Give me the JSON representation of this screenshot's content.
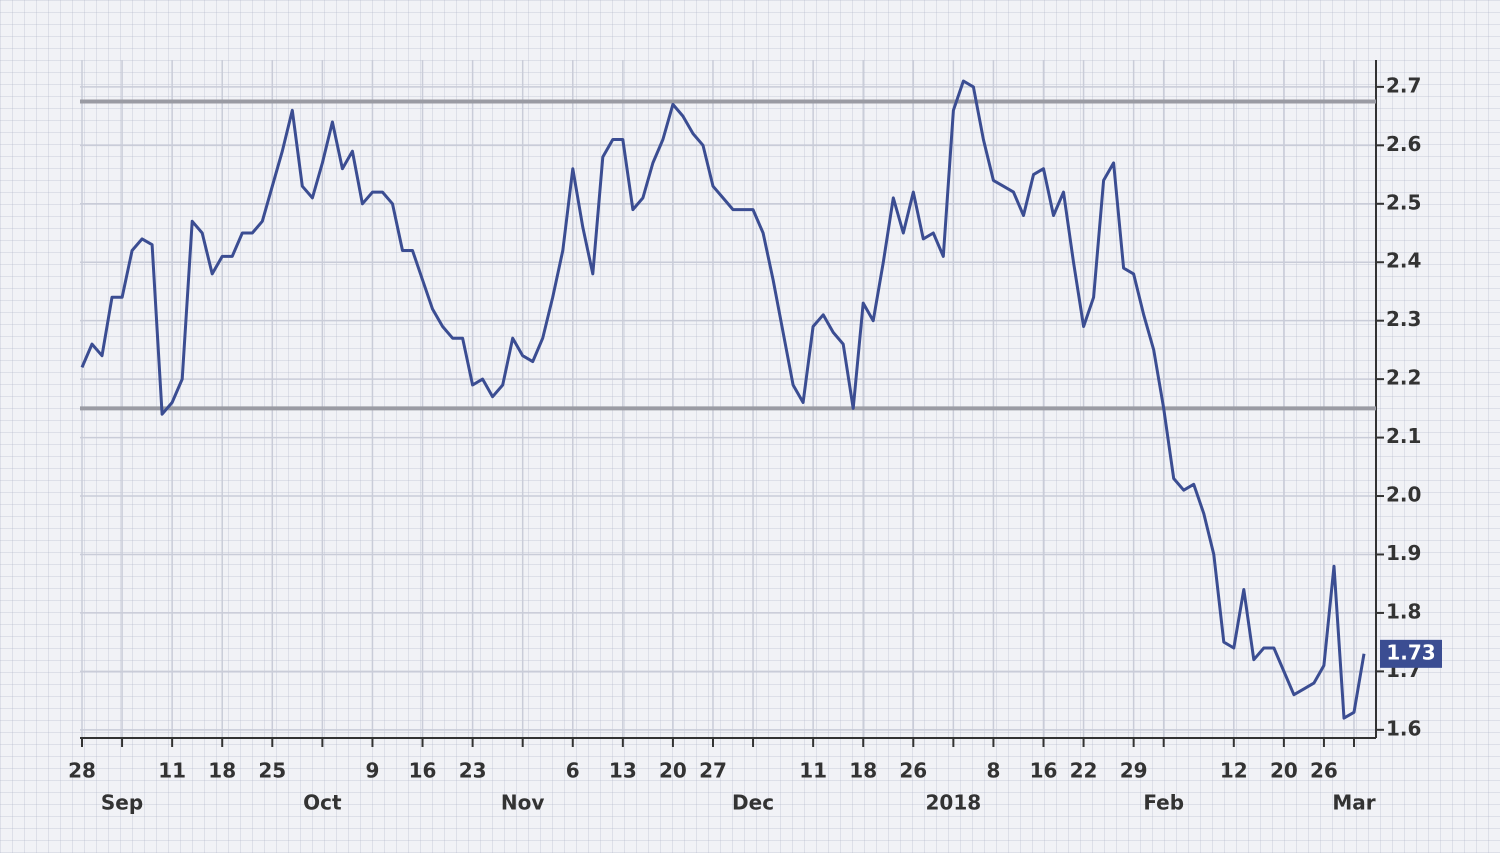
{
  "chart_data": {
    "type": "line",
    "series": [
      {
        "color": "#3b4d92",
        "values": [
          2.22,
          2.26,
          2.24,
          2.34,
          2.34,
          2.42,
          2.44,
          2.43,
          2.14,
          2.16,
          2.2,
          2.47,
          2.45,
          2.38,
          2.41,
          2.41,
          2.45,
          2.45,
          2.47,
          2.53,
          2.59,
          2.66,
          2.53,
          2.51,
          2.57,
          2.64,
          2.56,
          2.59,
          2.5,
          2.52,
          2.52,
          2.5,
          2.42,
          2.42,
          2.37,
          2.32,
          2.29,
          2.27,
          2.27,
          2.19,
          2.2,
          2.17,
          2.19,
          2.27,
          2.24,
          2.23,
          2.27,
          2.34,
          2.42,
          2.56,
          2.46,
          2.38,
          2.58,
          2.61,
          2.61,
          2.49,
          2.51,
          2.57,
          2.61,
          2.67,
          2.65,
          2.62,
          2.6,
          2.53,
          2.51,
          2.49,
          2.49,
          2.49,
          2.45,
          2.37,
          2.28,
          2.19,
          2.16,
          2.29,
          2.31,
          2.28,
          2.26,
          2.15,
          2.33,
          2.3,
          2.4,
          2.51,
          2.45,
          2.52,
          2.44,
          2.45,
          2.41,
          2.66,
          2.71,
          2.7,
          2.61,
          2.54,
          2.53,
          2.52,
          2.48,
          2.55,
          2.56,
          2.48,
          2.52,
          2.4,
          2.29,
          2.34,
          2.54,
          2.57,
          2.39,
          2.38,
          2.31,
          2.25,
          2.15,
          2.03,
          2.01,
          2.02,
          1.97,
          1.9,
          1.75,
          1.74,
          1.84,
          1.72,
          1.74,
          1.74,
          1.7,
          1.66,
          1.67,
          1.68,
          1.71,
          1.88,
          1.62,
          1.63,
          1.73
        ]
      }
    ],
    "last_value_label": "1.73",
    "xlim": [
      0,
      128
    ],
    "xticks": [
      {
        "value": 0,
        "label": "28"
      },
      {
        "value": 9,
        "label": "11"
      },
      {
        "value": 14,
        "label": "18"
      },
      {
        "value": 19,
        "label": "25"
      },
      {
        "value": 29,
        "label": "9"
      },
      {
        "value": 34,
        "label": "16"
      },
      {
        "value": 39,
        "label": "23"
      },
      {
        "value": 49,
        "label": "6"
      },
      {
        "value": 54,
        "label": "13"
      },
      {
        "value": 59,
        "label": "20"
      },
      {
        "value": 63,
        "label": "27"
      },
      {
        "value": 73,
        "label": "11"
      },
      {
        "value": 78,
        "label": "18"
      },
      {
        "value": 83,
        "label": "26"
      },
      {
        "value": 91,
        "label": "8"
      },
      {
        "value": 96,
        "label": "16"
      },
      {
        "value": 100,
        "label": "22"
      },
      {
        "value": 105,
        "label": "29"
      },
      {
        "value": 115,
        "label": "12"
      },
      {
        "value": 120,
        "label": "20"
      },
      {
        "value": 124,
        "label": "26"
      }
    ],
    "month_ticks": [
      {
        "value": 4,
        "label": "Sep"
      },
      {
        "value": 24,
        "label": "Oct"
      },
      {
        "value": 44,
        "label": "Nov"
      },
      {
        "value": 67,
        "label": "Dec"
      },
      {
        "value": 87,
        "label": "2018"
      },
      {
        "value": 108,
        "label": "Feb"
      },
      {
        "value": 127,
        "label": "Mar"
      }
    ],
    "ylim": [
      1.586,
      2.746
    ],
    "yticks": [
      1.6,
      1.7,
      1.8,
      1.9,
      {
        "value": 2,
        "label": "2.0"
      },
      2.1,
      2.2,
      2.3,
      2.4,
      2.5,
      2.6,
      2.7
    ],
    "hlines": [
      2.675,
      2.15
    ],
    "grid": true
  }
}
